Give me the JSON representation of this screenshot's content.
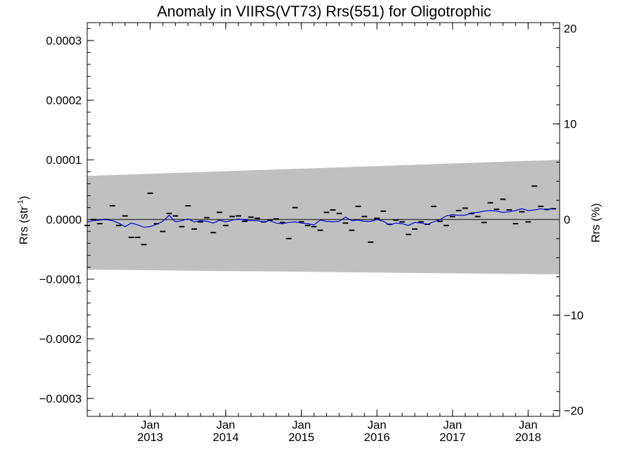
{
  "chart_data": {
    "type": "scatter",
    "title": "Anomaly in VIIRS(VT73) Rrs(551) for Oligotrophic",
    "ylabel": "Rrs (str",
    "ylabel_sup": "-1",
    "ylabel_close": ")",
    "y2label": "Rrs (%)",
    "xlabel": "",
    "x_start": "2012-03",
    "x_end": "2018-06",
    "ylim": [
      -0.00033,
      0.00033
    ],
    "y2lim": [
      -20.6,
      20.6
    ],
    "grid": false,
    "x_ticks": [
      {
        "top": "Jan",
        "bottom": "2013",
        "value": "2013-01"
      },
      {
        "top": "Jan",
        "bottom": "2014",
        "value": "2014-01"
      },
      {
        "top": "Jan",
        "bottom": "2015",
        "value": "2015-01"
      },
      {
        "top": "Jan",
        "bottom": "2016",
        "value": "2016-01"
      },
      {
        "top": "Jan",
        "bottom": "2017",
        "value": "2017-01"
      },
      {
        "top": "Jan",
        "bottom": "2018",
        "value": "2018-01"
      }
    ],
    "y_ticks": [
      {
        "value": 0.0003,
        "label": "0.0003"
      },
      {
        "value": 0.0002,
        "label": "0.0002"
      },
      {
        "value": 0.0001,
        "label": "0.0001"
      },
      {
        "value": 0.0,
        "label": "0.0000"
      },
      {
        "value": -0.0001,
        "label": "−0.0001"
      },
      {
        "value": -0.0002,
        "label": "−0.0002"
      },
      {
        "value": -0.0003,
        "label": "−0.0003"
      }
    ],
    "y2_ticks": [
      {
        "value": 20,
        "label": "20"
      },
      {
        "value": 10,
        "label": "10"
      },
      {
        "value": 0,
        "label": "0"
      },
      {
        "value": -10,
        "label": "−10"
      },
      {
        "value": -20,
        "label": "−20"
      }
    ],
    "band": {
      "color": "#c0c0c0",
      "upper": [
        {
          "x": "2012-03",
          "y": 7.3e-05
        },
        {
          "x": "2018-06",
          "y": 0.0001
        }
      ],
      "lower": [
        {
          "x": "2012-03",
          "y": -8.4e-05
        },
        {
          "x": "2018-06",
          "y": -9.2e-05
        }
      ]
    },
    "zero_line": true,
    "points": {
      "marker": "dash",
      "color": "#000000",
      "values": [
        {
          "x": "2012-03",
          "y": -1e-05
        },
        {
          "x": "2012-04",
          "y": 0.0
        },
        {
          "x": "2012-05",
          "y": -7e-06
        },
        {
          "x": "2012-06",
          "y": 0.0
        },
        {
          "x": "2012-07",
          "y": 2.3e-05
        },
        {
          "x": "2012-08",
          "y": -1e-05
        },
        {
          "x": "2012-09",
          "y": 6e-06
        },
        {
          "x": "2012-10",
          "y": -3e-05
        },
        {
          "x": "2012-11",
          "y": -3e-05
        },
        {
          "x": "2012-12",
          "y": -4.2e-05
        },
        {
          "x": "2013-01",
          "y": 4.4e-05
        },
        {
          "x": "2013-02",
          "y": -7e-06
        },
        {
          "x": "2013-03",
          "y": -2e-05
        },
        {
          "x": "2013-04",
          "y": 1e-05
        },
        {
          "x": "2013-05",
          "y": 6e-06
        },
        {
          "x": "2013-06",
          "y": -1.2e-05
        },
        {
          "x": "2013-07",
          "y": 2.3e-05
        },
        {
          "x": "2013-08",
          "y": -1.6e-05
        },
        {
          "x": "2013-09",
          "y": -4e-06
        },
        {
          "x": "2013-10",
          "y": 3e-06
        },
        {
          "x": "2013-11",
          "y": -2.2e-05
        },
        {
          "x": "2013-12",
          "y": 1.2e-05
        },
        {
          "x": "2014-01",
          "y": -1e-05
        },
        {
          "x": "2014-02",
          "y": 5e-06
        },
        {
          "x": "2014-03",
          "y": 6e-06
        },
        {
          "x": "2014-04",
          "y": -3e-06
        },
        {
          "x": "2014-05",
          "y": 4e-06
        },
        {
          "x": "2014-06",
          "y": 2e-06
        },
        {
          "x": "2014-07",
          "y": -4e-06
        },
        {
          "x": "2014-08",
          "y": -1e-06
        },
        {
          "x": "2014-09",
          "y": 1e-06
        },
        {
          "x": "2014-10",
          "y": -5e-06
        },
        {
          "x": "2014-11",
          "y": -3.2e-05
        },
        {
          "x": "2014-12",
          "y": 2e-05
        },
        {
          "x": "2015-01",
          "y": -4e-06
        },
        {
          "x": "2015-02",
          "y": -1e-05
        },
        {
          "x": "2015-03",
          "y": -1.2e-05
        },
        {
          "x": "2015-04",
          "y": -1.8e-05
        },
        {
          "x": "2015-05",
          "y": 1.2e-05
        },
        {
          "x": "2015-06",
          "y": 1.6e-05
        },
        {
          "x": "2015-07",
          "y": 1e-05
        },
        {
          "x": "2015-08",
          "y": -6e-06
        },
        {
          "x": "2015-09",
          "y": -1.8e-05
        },
        {
          "x": "2015-10",
          "y": 2.2e-05
        },
        {
          "x": "2015-11",
          "y": 5e-06
        },
        {
          "x": "2015-12",
          "y": -3.8e-05
        },
        {
          "x": "2016-01",
          "y": 2e-06
        },
        {
          "x": "2016-02",
          "y": 1.4e-05
        },
        {
          "x": "2016-03",
          "y": -8e-06
        },
        {
          "x": "2016-04",
          "y": -1e-06
        },
        {
          "x": "2016-05",
          "y": -4e-06
        },
        {
          "x": "2016-06",
          "y": -2.5e-05
        },
        {
          "x": "2016-07",
          "y": -1.6e-05
        },
        {
          "x": "2016-08",
          "y": -4e-06
        },
        {
          "x": "2016-09",
          "y": -8e-06
        },
        {
          "x": "2016-10",
          "y": 2.2e-05
        },
        {
          "x": "2016-11",
          "y": -3e-06
        },
        {
          "x": "2016-12",
          "y": -1e-05
        },
        {
          "x": "2017-01",
          "y": 5e-06
        },
        {
          "x": "2017-02",
          "y": 1.5e-05
        },
        {
          "x": "2017-03",
          "y": 1.9e-05
        },
        {
          "x": "2017-04",
          "y": 1e-05
        },
        {
          "x": "2017-05",
          "y": 5e-06
        },
        {
          "x": "2017-06",
          "y": -5e-06
        },
        {
          "x": "2017-07",
          "y": 2.8e-05
        },
        {
          "x": "2017-08",
          "y": 1.7e-05
        },
        {
          "x": "2017-09",
          "y": 3.4e-05
        },
        {
          "x": "2017-10",
          "y": 1.6e-05
        },
        {
          "x": "2017-11",
          "y": -7e-06
        },
        {
          "x": "2017-12",
          "y": 1.3e-05
        },
        {
          "x": "2018-01",
          "y": -4e-06
        },
        {
          "x": "2018-02",
          "y": 5.6e-05
        },
        {
          "x": "2018-03",
          "y": 2.2e-05
        },
        {
          "x": "2018-04",
          "y": 1.7e-05
        },
        {
          "x": "2018-05",
          "y": 1.8e-05
        }
      ]
    },
    "smooth_line": {
      "color": "#0000dd",
      "values": [
        {
          "x": "2012-03",
          "y": -4e-06
        },
        {
          "x": "2012-04",
          "y": -2e-06
        },
        {
          "x": "2012-05",
          "y": -1e-06
        },
        {
          "x": "2012-06",
          "y": 0.0
        },
        {
          "x": "2012-07",
          "y": -2e-06
        },
        {
          "x": "2012-08",
          "y": -6e-06
        },
        {
          "x": "2012-09",
          "y": -1.2e-05
        },
        {
          "x": "2012-10",
          "y": -6e-06
        },
        {
          "x": "2012-11",
          "y": -9e-06
        },
        {
          "x": "2012-12",
          "y": -1.3e-05
        },
        {
          "x": "2013-01",
          "y": -1.2e-05
        },
        {
          "x": "2013-02",
          "y": -8e-06
        },
        {
          "x": "2013-03",
          "y": -3e-06
        },
        {
          "x": "2013-04",
          "y": 7e-06
        },
        {
          "x": "2013-05",
          "y": -4e-06
        },
        {
          "x": "2013-06",
          "y": -2e-06
        },
        {
          "x": "2013-07",
          "y": 1e-06
        },
        {
          "x": "2013-08",
          "y": -4e-06
        },
        {
          "x": "2013-09",
          "y": -2e-06
        },
        {
          "x": "2013-10",
          "y": -3e-06
        },
        {
          "x": "2013-11",
          "y": -6e-06
        },
        {
          "x": "2013-12",
          "y": -1e-06
        },
        {
          "x": "2014-01",
          "y": -4e-06
        },
        {
          "x": "2014-02",
          "y": -1e-06
        },
        {
          "x": "2014-03",
          "y": 1e-06
        },
        {
          "x": "2014-04",
          "y": -1e-06
        },
        {
          "x": "2014-05",
          "y": -2e-06
        },
        {
          "x": "2014-06",
          "y": -2e-06
        },
        {
          "x": "2014-07",
          "y": -4e-06
        },
        {
          "x": "2014-08",
          "y": -2e-06
        },
        {
          "x": "2014-09",
          "y": -6e-06
        },
        {
          "x": "2014-10",
          "y": -7e-06
        },
        {
          "x": "2014-11",
          "y": -5e-06
        },
        {
          "x": "2014-12",
          "y": -4e-06
        },
        {
          "x": "2015-01",
          "y": -6e-06
        },
        {
          "x": "2015-02",
          "y": -7e-06
        },
        {
          "x": "2015-03",
          "y": -9e-06
        },
        {
          "x": "2015-04",
          "y": -1e-06
        },
        {
          "x": "2015-05",
          "y": -3e-06
        },
        {
          "x": "2015-06",
          "y": -4e-06
        },
        {
          "x": "2015-07",
          "y": -3e-06
        },
        {
          "x": "2015-08",
          "y": 4e-06
        },
        {
          "x": "2015-09",
          "y": -2e-06
        },
        {
          "x": "2015-10",
          "y": -1e-06
        },
        {
          "x": "2015-11",
          "y": -3e-06
        },
        {
          "x": "2015-12",
          "y": -3e-06
        },
        {
          "x": "2016-01",
          "y": 0.0
        },
        {
          "x": "2016-02",
          "y": -3e-06
        },
        {
          "x": "2016-03",
          "y": -9e-06
        },
        {
          "x": "2016-04",
          "y": -6e-06
        },
        {
          "x": "2016-05",
          "y": -7e-06
        },
        {
          "x": "2016-06",
          "y": -1e-05
        },
        {
          "x": "2016-07",
          "y": -5e-06
        },
        {
          "x": "2016-08",
          "y": -6e-06
        },
        {
          "x": "2016-09",
          "y": -8e-06
        },
        {
          "x": "2016-10",
          "y": -4e-06
        },
        {
          "x": "2016-11",
          "y": 0.0
        },
        {
          "x": "2016-12",
          "y": 6e-06
        },
        {
          "x": "2017-01",
          "y": 8e-06
        },
        {
          "x": "2017-02",
          "y": 7e-06
        },
        {
          "x": "2017-03",
          "y": 7e-06
        },
        {
          "x": "2017-04",
          "y": 1.1e-05
        },
        {
          "x": "2017-05",
          "y": 1.2e-05
        },
        {
          "x": "2017-06",
          "y": 1.4e-05
        },
        {
          "x": "2017-07",
          "y": 1.5e-05
        },
        {
          "x": "2017-08",
          "y": 1.4e-05
        },
        {
          "x": "2017-09",
          "y": 1.2e-05
        },
        {
          "x": "2017-10",
          "y": 1.3e-05
        },
        {
          "x": "2017-11",
          "y": 1.5e-05
        },
        {
          "x": "2017-12",
          "y": 1.8e-05
        },
        {
          "x": "2018-01",
          "y": 1.5e-05
        },
        {
          "x": "2018-02",
          "y": 1.6e-05
        },
        {
          "x": "2018-03",
          "y": 1.8e-05
        },
        {
          "x": "2018-04",
          "y": 1.6e-05
        },
        {
          "x": "2018-05",
          "y": 1.9e-05
        }
      ]
    }
  }
}
